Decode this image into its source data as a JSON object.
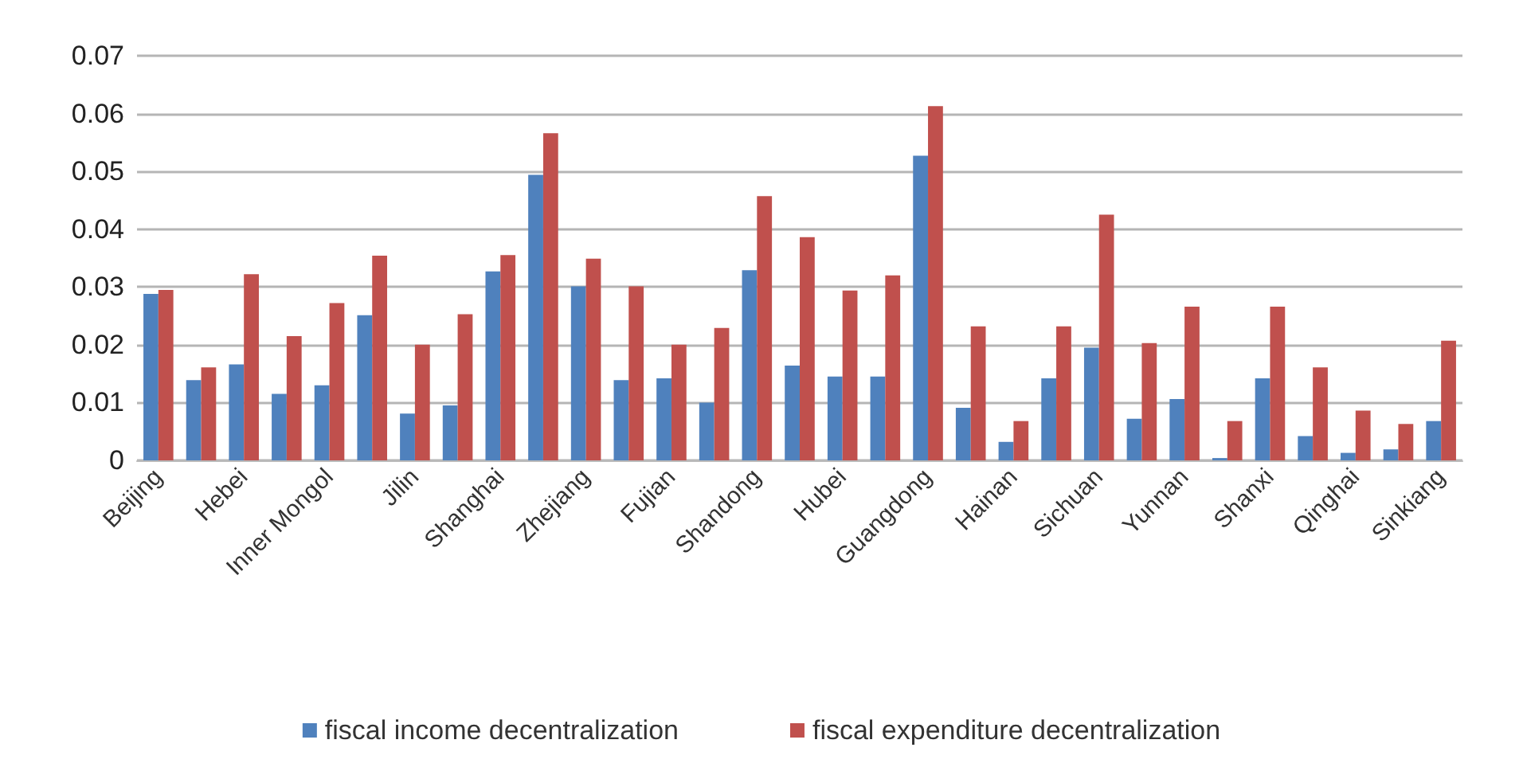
{
  "chart_data": {
    "type": "bar",
    "categories": [
      "Beijing",
      null,
      "Hebei",
      null,
      "Inner Mongol",
      null,
      "Jilin",
      null,
      "Shanghai",
      null,
      "Zhejiang",
      null,
      "Fujian",
      null,
      "Shandong",
      null,
      "Hubei",
      null,
      "Guangdong",
      null,
      "Hainan",
      null,
      "Sichuan",
      null,
      "Yunnan",
      null,
      "Shanxi",
      null,
      "Qinghai",
      null,
      "Sinkiang"
    ],
    "series": [
      {
        "name": "fiscal income decentralization",
        "color": "#4f81bd",
        "values": [
          0.0288,
          0.0139,
          0.0166,
          0.0115,
          0.013,
          0.0251,
          0.0081,
          0.0095,
          0.0327,
          0.0494,
          0.0301,
          0.0139,
          0.0142,
          0.01,
          0.0329,
          0.0164,
          0.0145,
          0.0145,
          0.0527,
          0.0091,
          0.0032,
          0.0142,
          0.0195,
          0.0072,
          0.0106,
          0.0004,
          0.0142,
          0.0042,
          0.0013,
          0.0019,
          0.0068
        ]
      },
      {
        "name": "fiscal expenditure decentralization",
        "color": "#c0504d",
        "values": [
          0.0295,
          0.0161,
          0.0322,
          0.0215,
          0.0272,
          0.0354,
          0.02,
          0.0253,
          0.0355,
          0.0566,
          0.0349,
          0.0301,
          0.02,
          0.0229,
          0.0457,
          0.0386,
          0.0294,
          0.032,
          0.0613,
          0.0232,
          0.0068,
          0.0232,
          0.0425,
          0.0203,
          0.0266,
          0.0068,
          0.0266,
          0.0161,
          0.0086,
          0.0063,
          0.0207
        ]
      }
    ],
    "ylim": [
      0,
      0.07
    ],
    "yticks": [
      0,
      0.01,
      0.02,
      0.03,
      0.04,
      0.05,
      0.06,
      0.07
    ],
    "grid": "y",
    "legend": "bottom"
  }
}
